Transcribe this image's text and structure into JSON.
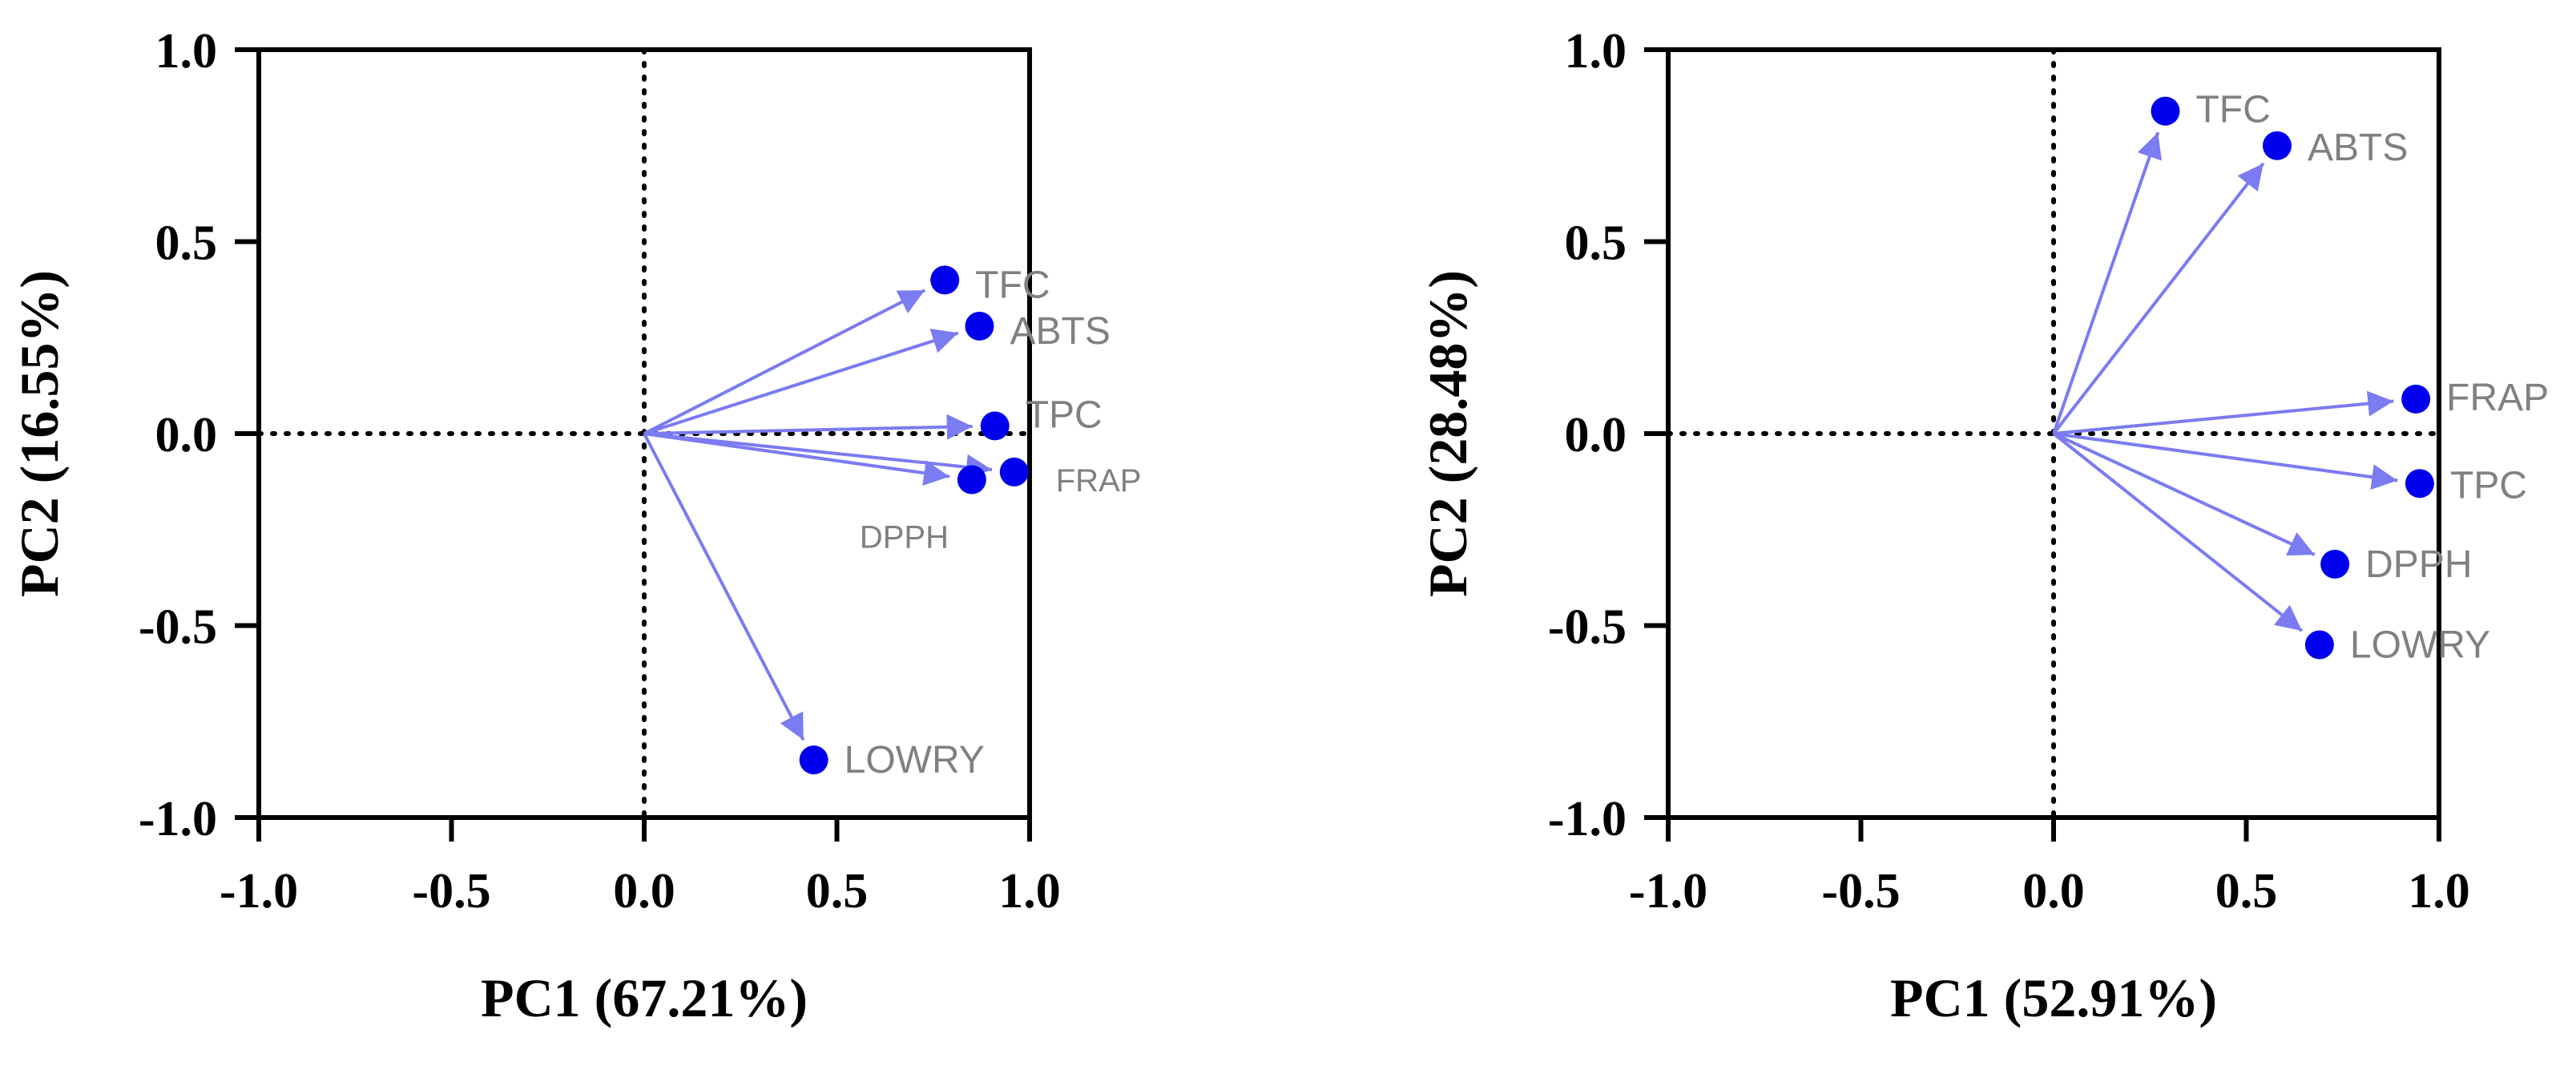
{
  "chart_data": [
    {
      "type": "scatter",
      "subtype": "pca-loadings-biplot",
      "xlabel": "PC1 (67.21%)",
      "ylabel": "PC2 (16.55%)",
      "xlim": [
        -1.0,
        1.0
      ],
      "ylim": [
        -1.0,
        1.0
      ],
      "xticks": [
        "-1.0",
        "-0.5",
        "0.0",
        "0.5",
        "1.0"
      ],
      "yticks": [
        "1.0",
        "0.5",
        "0.0",
        "-0.5",
        "-1.0"
      ],
      "grid": false,
      "zero_lines": "dotted",
      "points": [
        {
          "label": "TFC",
          "x": 0.78,
          "y": 0.4
        },
        {
          "label": "ABTS",
          "x": 0.87,
          "y": 0.28
        },
        {
          "label": "TPC",
          "x": 0.91,
          "y": 0.02
        },
        {
          "label": "FRAP",
          "x": 0.96,
          "y": -0.1
        },
        {
          "label": "DPPH",
          "x": 0.85,
          "y": -0.12
        },
        {
          "label": "LOWRY",
          "x": 0.44,
          "y": -0.85
        }
      ]
    },
    {
      "type": "scatter",
      "subtype": "pca-loadings-biplot",
      "xlabel": "PC1 (52.91%)",
      "ylabel": "PC2 (28.48%)",
      "xlim": [
        -1.0,
        1.0
      ],
      "ylim": [
        -1.0,
        1.0
      ],
      "xticks": [
        "-1.0",
        "-0.5",
        "0.0",
        "0.5",
        "1.0"
      ],
      "yticks": [
        "1.0",
        "0.5",
        "0.0",
        "-0.5",
        "-1.0"
      ],
      "grid": false,
      "zero_lines": "dotted",
      "points": [
        {
          "label": "TFC",
          "x": 0.29,
          "y": 0.84
        },
        {
          "label": "ABTS",
          "x": 0.58,
          "y": 0.75
        },
        {
          "label": "FRAP",
          "x": 0.94,
          "y": 0.09
        },
        {
          "label": "TPC",
          "x": 0.95,
          "y": -0.13
        },
        {
          "label": "DPPH",
          "x": 0.73,
          "y": -0.34
        },
        {
          "label": "LOWRY",
          "x": 0.69,
          "y": -0.55
        }
      ]
    }
  ]
}
